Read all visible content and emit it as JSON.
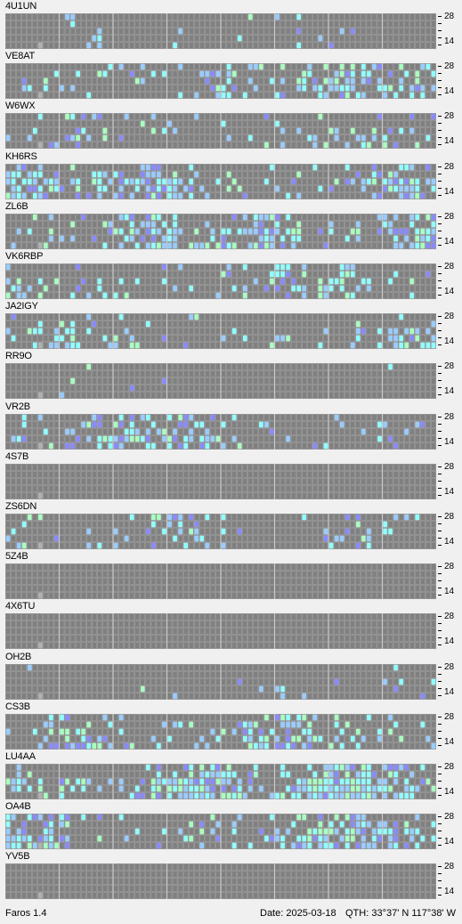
{
  "app": {
    "name": "Faros 1.4"
  },
  "status": {
    "date": "Date: 2025-03-18",
    "qth": "QTH: 33°37' N  117°38' W"
  },
  "scale": {
    "top": "28",
    "bottom": "14"
  },
  "colors": {
    "grid": "#7f7f7f",
    "gridLine": "#a6a6a6",
    "cell": "#808080",
    "highlight": "#b0b0b0",
    "weak": "#8a8aff",
    "medium": "#99ccff",
    "strong": "#8fffff",
    "verystrong": "#a8ffc0"
  },
  "beacons": [
    {
      "call": "4U1UN",
      "activity": 0.05
    },
    {
      "call": "VE8AT",
      "activity": 0.35
    },
    {
      "call": "W6WX",
      "activity": 0.2
    },
    {
      "call": "KH6RS",
      "activity": 0.45
    },
    {
      "call": "ZL6B",
      "activity": 0.45
    },
    {
      "call": "VK6RBP",
      "activity": 0.25
    },
    {
      "call": "JA2IGY",
      "activity": 0.25
    },
    {
      "call": "RR9O",
      "activity": 0.03
    },
    {
      "call": "VR2B",
      "activity": 0.3
    },
    {
      "call": "4S7B",
      "activity": 0.0
    },
    {
      "call": "ZS6DN",
      "activity": 0.2
    },
    {
      "call": "5Z4B",
      "activity": 0.0
    },
    {
      "call": "4X6TU",
      "activity": 0.0
    },
    {
      "call": "OH2B",
      "activity": 0.04
    },
    {
      "call": "CS3B",
      "activity": 0.35
    },
    {
      "call": "LU4AA",
      "activity": 0.6
    },
    {
      "call": "OA4B",
      "activity": 0.5
    },
    {
      "call": "YV5B",
      "activity": 0.0
    }
  ]
}
